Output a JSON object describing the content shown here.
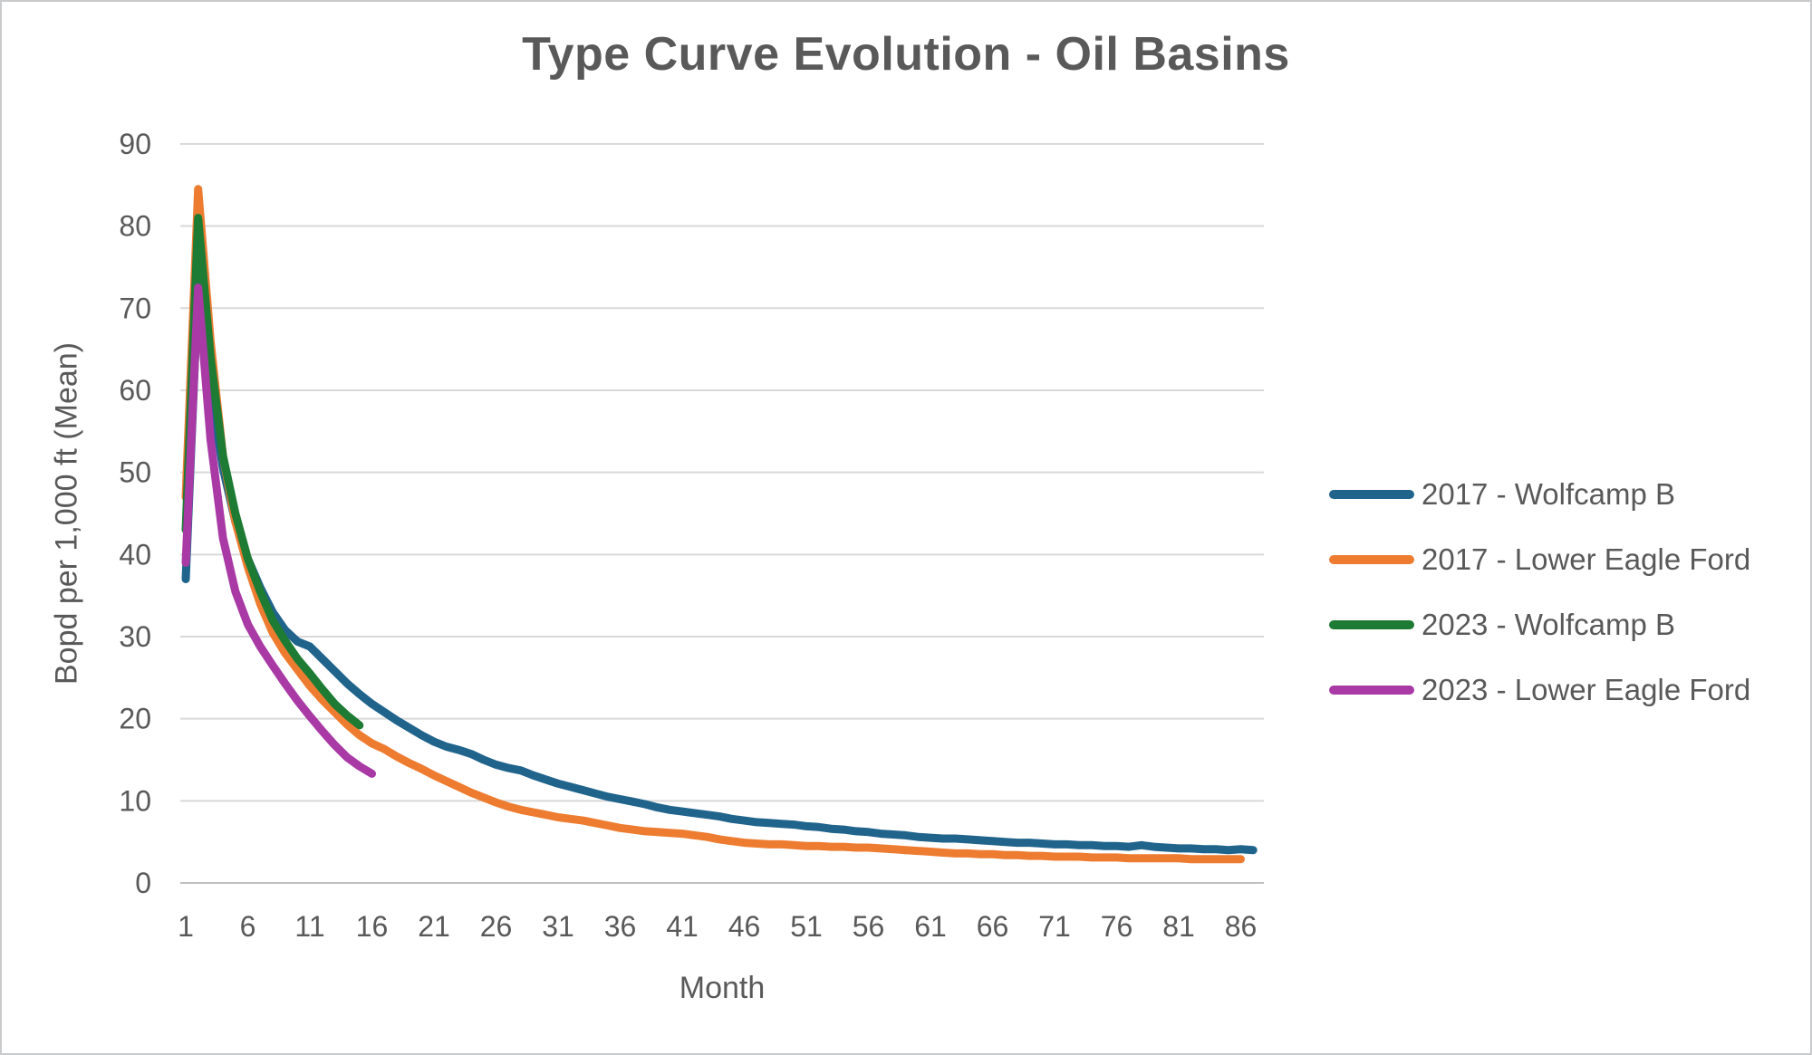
{
  "chart_data": {
    "type": "line",
    "title": "Type Curve Evolution - Oil Basins",
    "xlabel": "Month",
    "ylabel": "Bopd per 1,000 ft (Mean)",
    "x_ticks": [
      1,
      6,
      11,
      16,
      21,
      26,
      31,
      36,
      41,
      46,
      51,
      56,
      61,
      66,
      71,
      76,
      81,
      86
    ],
    "y_ticks": [
      0,
      10,
      20,
      30,
      40,
      50,
      60,
      70,
      80,
      90
    ],
    "ylim": [
      0,
      90
    ],
    "xlim": [
      1,
      88
    ],
    "grid": true,
    "legend_position": "right",
    "grid_color": "#d9d9d9",
    "axis_line_color": "#bfbfbf",
    "text_color": "#595959",
    "x_start": 1,
    "x_step": 1,
    "series": [
      {
        "name": "2017 - Wolfcamp B",
        "color": "#20648C",
        "values": [
          37,
          73,
          60,
          50.5,
          44,
          39.5,
          36,
          33,
          30.8,
          29.4,
          28.8,
          27.3,
          25.8,
          24.3,
          23.0,
          21.8,
          20.8,
          19.8,
          18.9,
          18.0,
          17.2,
          16.6,
          16.2,
          15.7,
          15.0,
          14.4,
          14.0,
          13.7,
          13.1,
          12.6,
          12.1,
          11.7,
          11.3,
          10.9,
          10.5,
          10.2,
          9.9,
          9.6,
          9.2,
          8.9,
          8.7,
          8.5,
          8.3,
          8.1,
          7.8,
          7.6,
          7.4,
          7.3,
          7.2,
          7.1,
          6.9,
          6.8,
          6.6,
          6.5,
          6.3,
          6.2,
          6.0,
          5.9,
          5.8,
          5.6,
          5.5,
          5.4,
          5.4,
          5.3,
          5.2,
          5.1,
          5.0,
          4.9,
          4.9,
          4.8,
          4.7,
          4.7,
          4.6,
          4.6,
          4.5,
          4.5,
          4.4,
          4.6,
          4.4,
          4.3,
          4.2,
          4.2,
          4.1,
          4.1,
          4.0,
          4.1,
          4.0
        ]
      },
      {
        "name": "2017 - Lower Eagle Ford",
        "color": "#EE7C30",
        "values": [
          47,
          84.5,
          66,
          52,
          44,
          38.5,
          34,
          30.5,
          28,
          26,
          24,
          22.3,
          20.8,
          19.3,
          18.0,
          17.0,
          16.3,
          15.4,
          14.6,
          13.9,
          13.1,
          12.4,
          11.7,
          11.0,
          10.4,
          9.8,
          9.3,
          8.9,
          8.6,
          8.3,
          8.0,
          7.8,
          7.6,
          7.3,
          7.0,
          6.7,
          6.5,
          6.3,
          6.2,
          6.1,
          6.0,
          5.8,
          5.6,
          5.3,
          5.1,
          4.9,
          4.8,
          4.7,
          4.7,
          4.6,
          4.5,
          4.5,
          4.4,
          4.4,
          4.3,
          4.3,
          4.2,
          4.1,
          4.0,
          3.9,
          3.8,
          3.7,
          3.6,
          3.6,
          3.5,
          3.5,
          3.4,
          3.4,
          3.3,
          3.3,
          3.2,
          3.2,
          3.2,
          3.1,
          3.1,
          3.1,
          3.0,
          3.0,
          3.0,
          3.0,
          3.0,
          2.9,
          2.9,
          2.9,
          2.9,
          2.9
        ]
      },
      {
        "name": "2023 - Wolfcamp B",
        "color": "#1E7B33",
        "values": [
          43,
          81,
          64,
          52,
          45,
          39.5,
          35.5,
          32,
          29.5,
          27.3,
          25.5,
          23.6,
          21.8,
          20.4,
          19.2
        ]
      },
      {
        "name": "2023 - Lower Eagle Ford",
        "color": "#A93AA5",
        "values": [
          39,
          72.5,
          54,
          42,
          35.5,
          31.5,
          28.8,
          26.5,
          24.3,
          22.2,
          20.3,
          18.5,
          16.8,
          15.3,
          14.2,
          13.3
        ]
      }
    ]
  }
}
